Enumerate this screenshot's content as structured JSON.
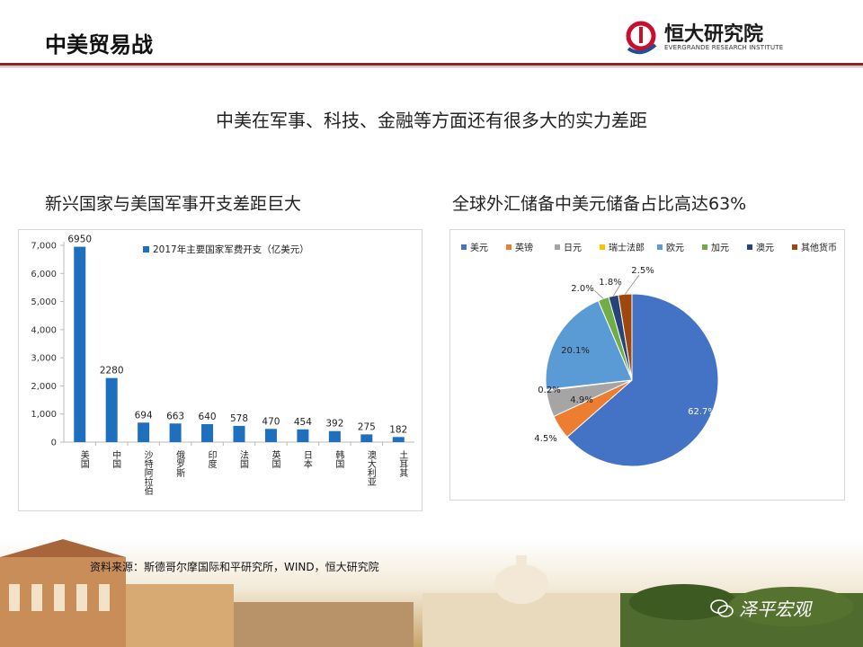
{
  "header": {
    "title": "中美贸易战",
    "logo_name": "恒大研究院",
    "logo_sub": "EVERGRANDE RESEARCH INSTITUTE"
  },
  "headline": "中美在军事、科技、金融等方面还有很多大的实力差距",
  "left_subtitle": "新兴国家与美国军事开支差距巨大",
  "right_subtitle": "全球外汇储备中美元储备占比高达63%",
  "source": "资料来源：斯德哥尔摩国际和平研究所，WIND，恒大研究院",
  "watermark": "泽平宏观",
  "colors": {
    "bar": "#1f6fbf",
    "title_rule": "#9b1c1c"
  },
  "chart_data": [
    {
      "type": "bar",
      "categories": [
        "美国",
        "中国",
        "沙特阿拉伯",
        "俄罗斯",
        "印度",
        "法国",
        "英国",
        "日本",
        "韩国",
        "澳大利亚",
        "土耳其"
      ],
      "series": [
        {
          "name": "2017年主要国家军费开支（亿美元）",
          "values": [
            6950,
            2280,
            694,
            663,
            640,
            578,
            470,
            454,
            392,
            275,
            182
          ]
        }
      ],
      "data_labels": [
        "6950",
        "2280",
        "694",
        "663",
        "640",
        "578",
        "470",
        "454",
        "392",
        "275",
        "182"
      ],
      "yticks": [
        "0",
        "1,000",
        "2,000",
        "3,000",
        "4,000",
        "5,000",
        "6,000",
        "7,000"
      ],
      "ylim": [
        0,
        7000
      ],
      "legend_position": "top"
    },
    {
      "type": "pie",
      "labels": [
        "美元",
        "英镑",
        "日元",
        "瑞士法郎",
        "欧元",
        "加元",
        "澳元",
        "其他货币"
      ],
      "values": [
        62.7,
        4.5,
        4.9,
        0.2,
        20.1,
        2.0,
        1.8,
        2.5
      ],
      "data_labels": [
        "62.7%",
        "4.5%",
        "4.9%",
        "0.2%",
        "20.1%",
        "2.0%",
        "1.8%",
        "2.5%"
      ],
      "colors": [
        "#4472c4",
        "#ed7d31",
        "#a5a5a5",
        "#ffc000",
        "#5b9bd5",
        "#70ad47",
        "#264478",
        "#9e480e"
      ],
      "legend_position": "top"
    }
  ]
}
